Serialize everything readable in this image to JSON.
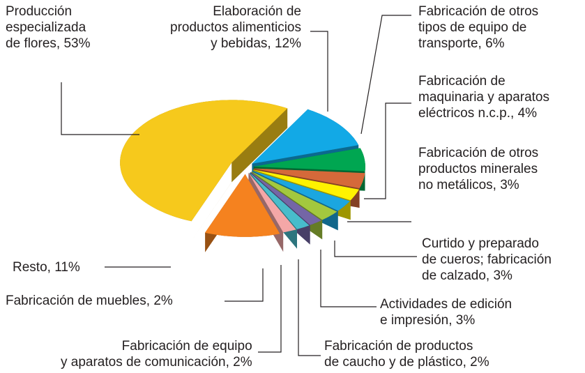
{
  "chart_data": {
    "type": "pie",
    "categories": [
      "Elaboración de productos alimenticios y bebidas,",
      "Fabricación de otros tipos de equipo de transporte,",
      "Fabricación de maquinaria y aparatos eléctricos n.c.p.,",
      "Fabricación de otros productos minerales no metálicos,",
      "Curtido y preparado de cueros; fabricación de calzado,",
      "Actividades de edición e impresión,",
      "Fabricación de productos de caucho y de plástico,",
      "Fabricación de equipo y aparatos de comunicación,",
      "Fabricación de muebles,",
      "Resto,",
      "Producción especializada de flores,"
    ],
    "values": [
      12,
      6,
      4,
      3,
      3,
      3,
      2,
      2,
      2,
      11,
      53
    ],
    "value_labels": [
      "12%",
      "6%",
      "4%",
      "3%",
      "3%",
      "3%",
      "2%",
      "2%",
      "2%",
      "11%",
      "53%"
    ],
    "colors": [
      "#12a9e6",
      "#00a651",
      "#d5693a",
      "#fff200",
      "#1ba6e0",
      "#a3c83e",
      "#7466a6",
      "#48bccb",
      "#f4a7a7",
      "#f5821f",
      "#f6c91c"
    ]
  }
}
